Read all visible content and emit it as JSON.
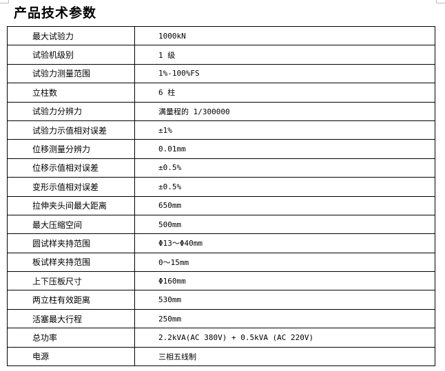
{
  "title": "产品技术参数",
  "rows": [
    {
      "label": "最大试验力",
      "value": "1000kN"
    },
    {
      "label": "试验机级别",
      "value": "1 级"
    },
    {
      "label": "试验力测量范围",
      "value": "1%-100%FS"
    },
    {
      "label": "立柱数",
      "value": "6 柱"
    },
    {
      "label": "试验力分辨力",
      "value": "满量程的 1/300000"
    },
    {
      "label": "试验力示值相对误差",
      "value": "±1%"
    },
    {
      "label": "位移测量分辨力",
      "value": "0.01mm"
    },
    {
      "label": "位移示值相对误差",
      "value": "±0.5%"
    },
    {
      "label": "变形示值相对误差",
      "value": "±0.5%"
    },
    {
      "label": "拉伸夹头间最大距离",
      "value": "650mm"
    },
    {
      "label": "最大压缩空间",
      "value": "500mm"
    },
    {
      "label": "圆试样夹持范围",
      "value": "Φ13～Φ40mm"
    },
    {
      "label": "板试样夹持范围",
      "value": "0～15mm"
    },
    {
      "label": "上下压板尺寸",
      "value": "Φ160mm"
    },
    {
      "label": "两立柱有效距离",
      "value": "530mm"
    },
    {
      "label": "活塞最大行程",
      "value": "250mm"
    },
    {
      "label": "总功率",
      "value": "2.2kVA(AC 380V) + 0.5kVA (AC 220V)"
    },
    {
      "label": "电源",
      "value": "三相五线制"
    }
  ]
}
